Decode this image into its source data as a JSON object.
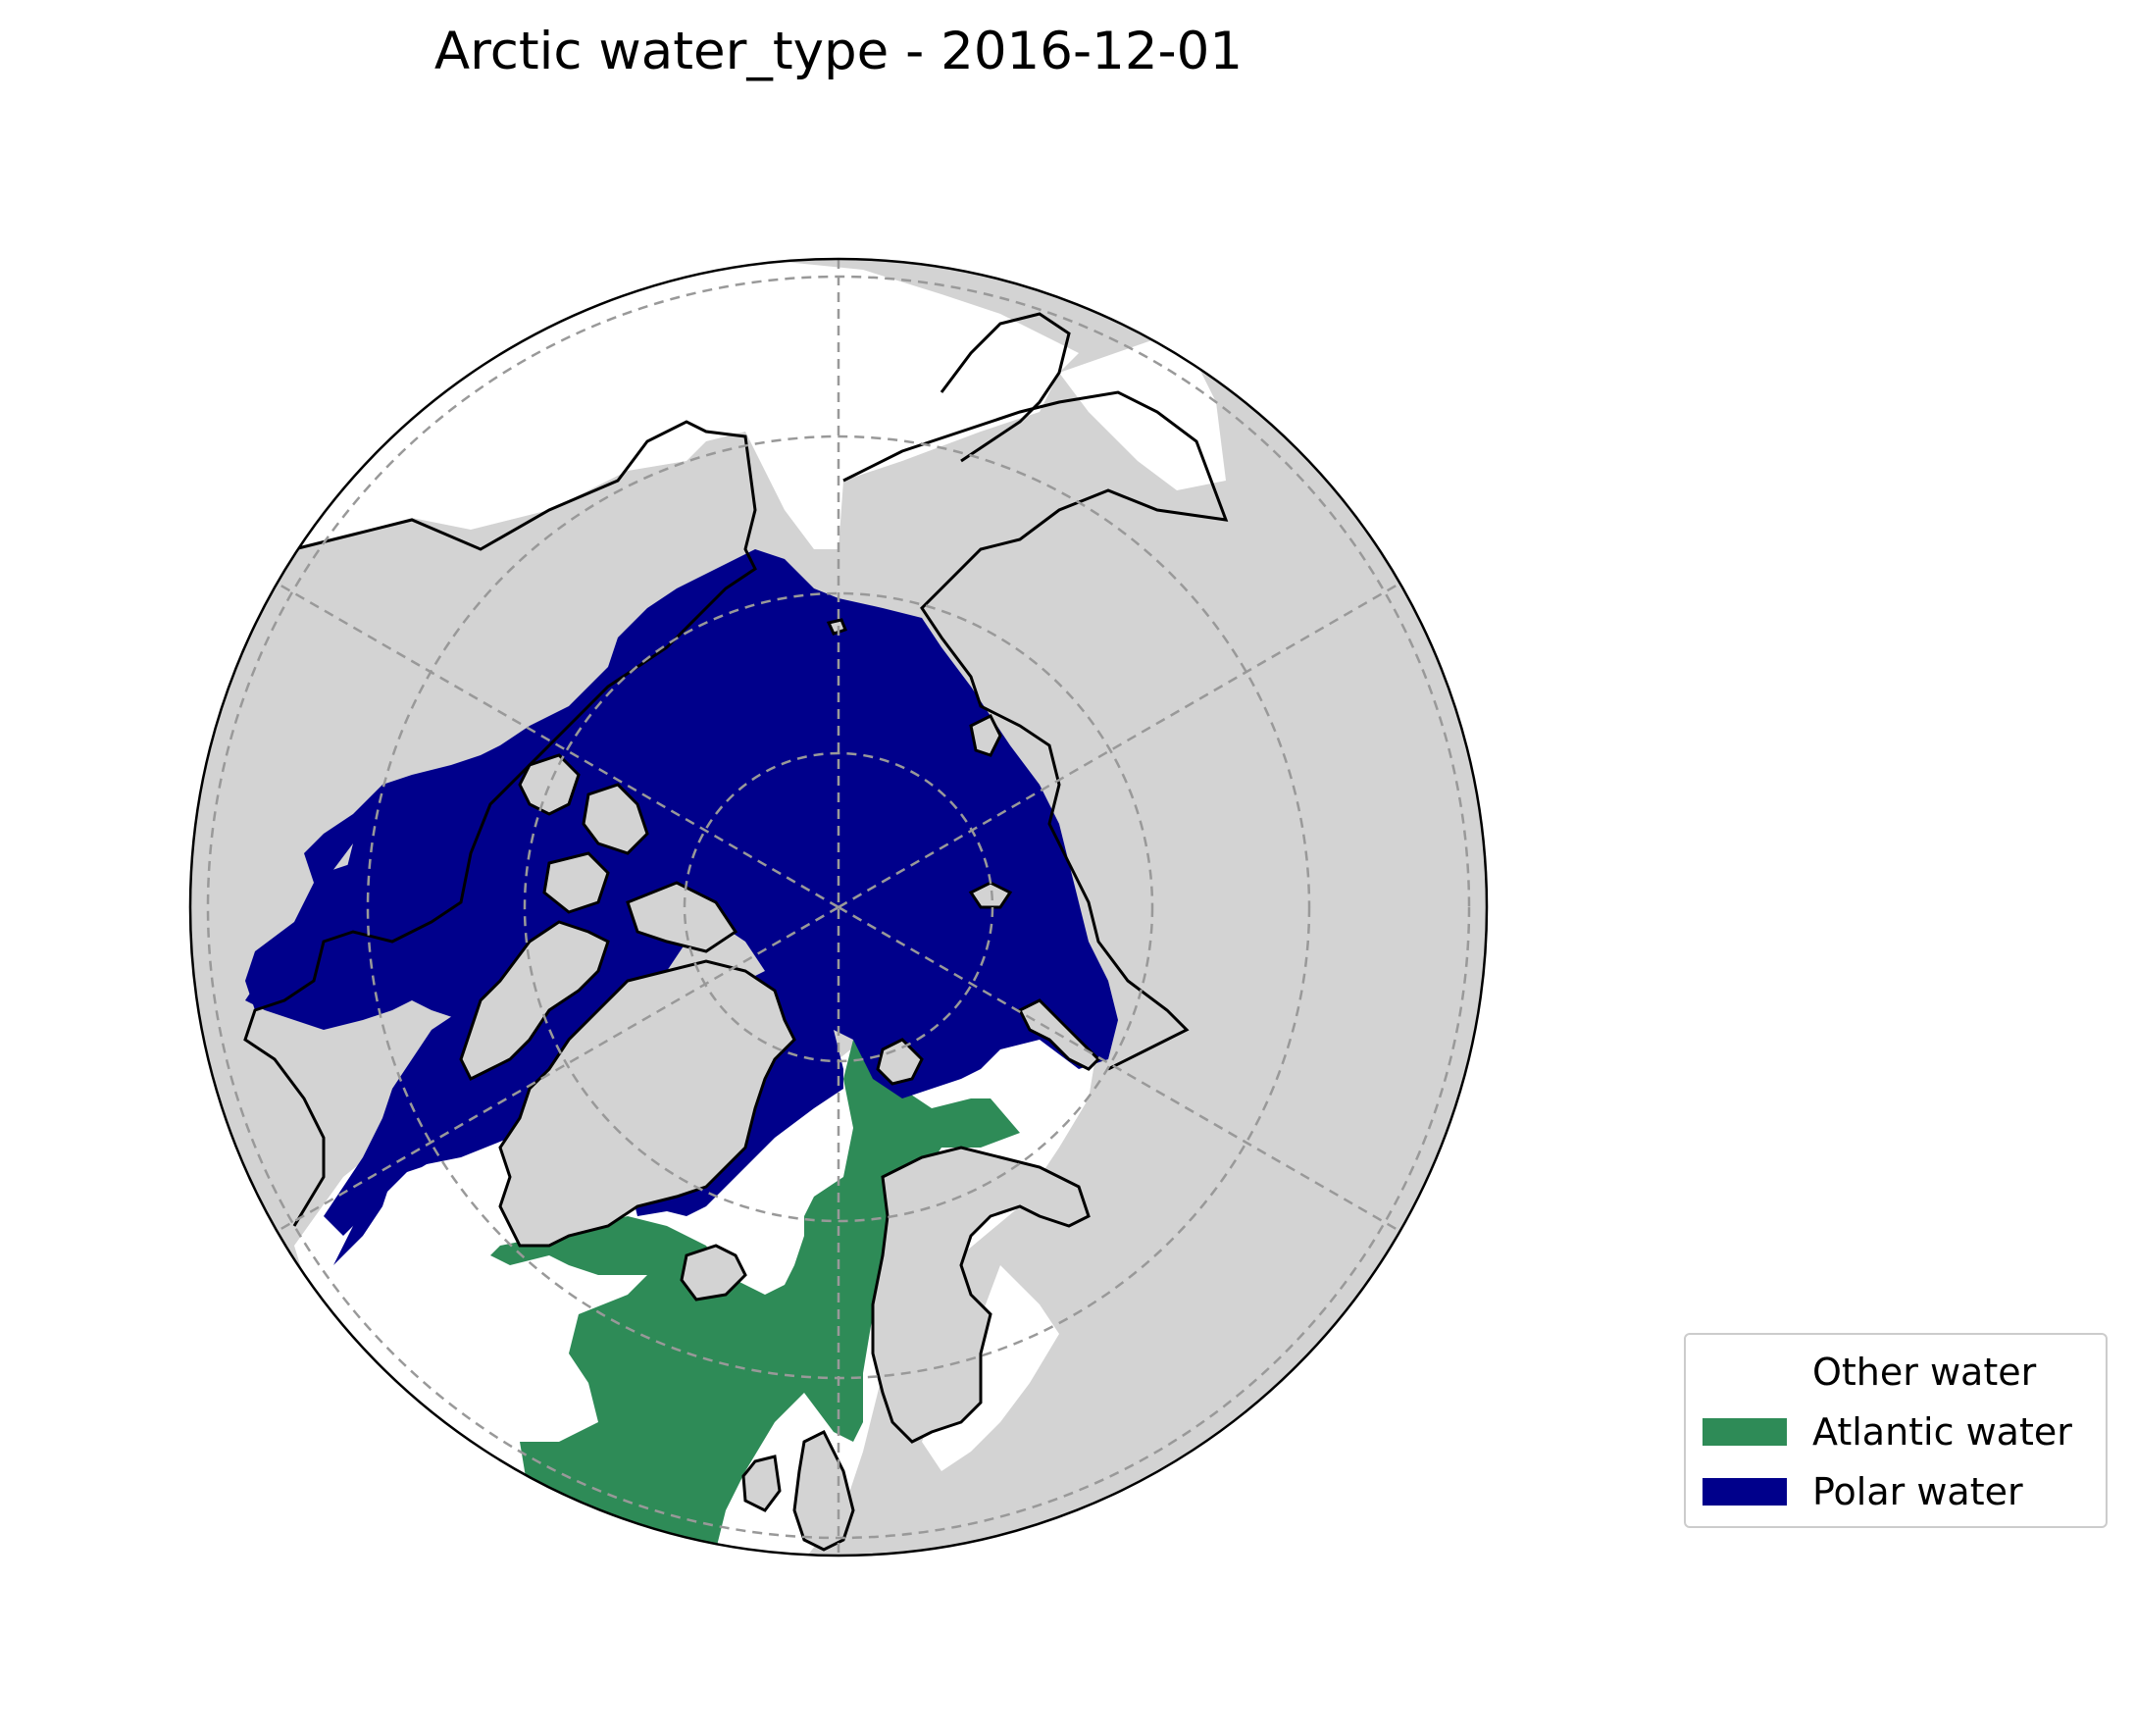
{
  "title": "Arctic water_type - 2016-12-01",
  "map": {
    "projection": "north-polar-stereographic",
    "colors": {
      "land": "#d3d3d3",
      "other_water": "#ffffff",
      "atlantic_water": "#2e8b57",
      "polar_water": "#00008b",
      "coastline": "#000000",
      "gridlines": "#999999"
    }
  },
  "legend": {
    "items": [
      {
        "label": "Other water",
        "color": "#ffffff"
      },
      {
        "label": "Atlantic water",
        "color": "#2e8b57"
      },
      {
        "label": "Polar water",
        "color": "#00008b"
      }
    ]
  }
}
